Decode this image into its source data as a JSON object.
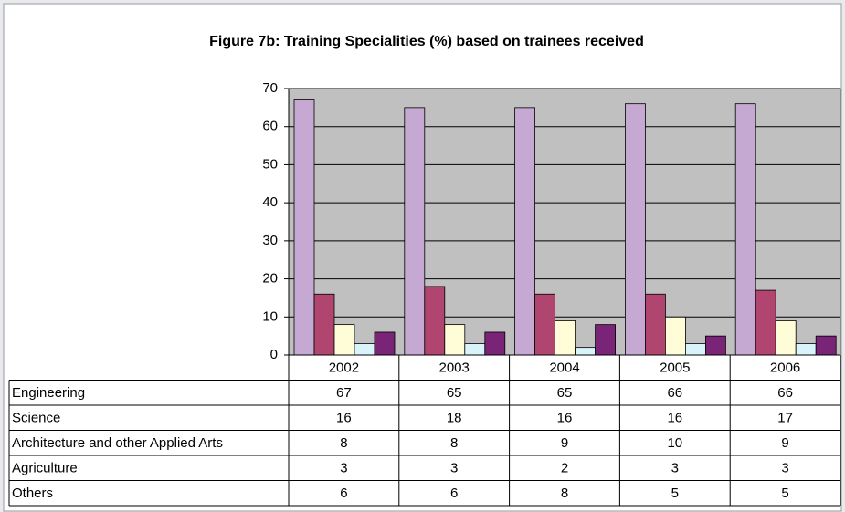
{
  "chart_data": {
    "type": "bar",
    "title": "Figure 7b: Training Specialities (%) based on trainees received",
    "categories": [
      "2002",
      "2003",
      "2004",
      "2005",
      "2006"
    ],
    "series": [
      {
        "name": "Engineering",
        "color": "#c6a9d2",
        "values": [
          67,
          65,
          65,
          66,
          66
        ]
      },
      {
        "name": "Science",
        "color": "#b0466f",
        "values": [
          16,
          18,
          16,
          16,
          17
        ]
      },
      {
        "name": "Architecture and other Applied Arts",
        "color": "#fffcd8",
        "values": [
          8,
          8,
          9,
          10,
          9
        ]
      },
      {
        "name": "Agriculture",
        "color": "#d8f3fa",
        "values": [
          3,
          3,
          2,
          3,
          3
        ]
      },
      {
        "name": "Others",
        "color": "#7a2478",
        "values": [
          6,
          6,
          8,
          5,
          5
        ]
      }
    ],
    "ylim": [
      0,
      70
    ],
    "yticks": [
      0,
      10,
      20,
      30,
      40,
      50,
      60,
      70
    ],
    "grid": true,
    "plot_background": "#c0c0c0",
    "data_table": true
  }
}
